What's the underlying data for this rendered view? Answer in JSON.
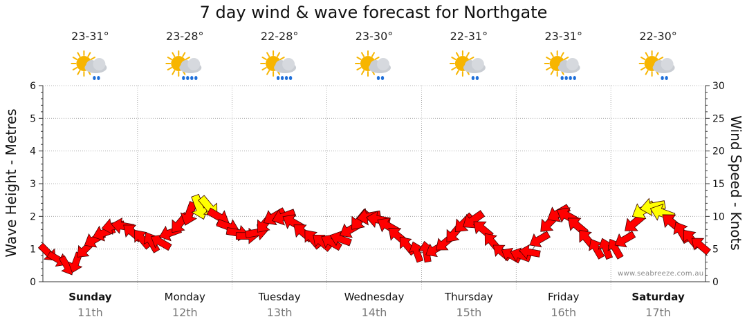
{
  "title": "7 day wind & wave forecast for Northgate",
  "watermark": "www.seabreeze.com.au",
  "days": [
    {
      "name": "Sunday",
      "date": "11th",
      "temp": "23-31°",
      "icon": "sun-cloud-showers-icon",
      "weekend": true
    },
    {
      "name": "Monday",
      "date": "12th",
      "temp": "23-28°",
      "icon": "sun-cloud-rain-icon",
      "weekend": false
    },
    {
      "name": "Tuesday",
      "date": "13th",
      "temp": "22-28°",
      "icon": "sun-cloud-rain-icon",
      "weekend": false
    },
    {
      "name": "Wednesday",
      "date": "14th",
      "temp": "23-30°",
      "icon": "sun-cloud-showers-icon",
      "weekend": false
    },
    {
      "name": "Thursday",
      "date": "15th",
      "temp": "22-31°",
      "icon": "sun-cloud-showers-icon",
      "weekend": false
    },
    {
      "name": "Friday",
      "date": "16th",
      "temp": "23-31°",
      "icon": "sun-cloud-rain-icon",
      "weekend": false
    },
    {
      "name": "Saturday",
      "date": "17th",
      "temp": "22-30°",
      "icon": "sun-cloud-showers-icon",
      "weekend": true
    }
  ],
  "colors": {
    "arrow_strong": "#ff0000",
    "arrow_light": "#ffff00",
    "arrow_outline": "#3a0000",
    "grid": "#9a9a9a",
    "wave_line": "#555555",
    "sun": "#f7b500",
    "cloud": "#c9cdd3",
    "rain": "#1e6fd9"
  },
  "chart_data": {
    "type": "line",
    "title": "7 day wind & wave forecast for Northgate",
    "xlabel": "",
    "ylabel": "Wave Height - Metres",
    "y2label": "Wind Speed - Knots",
    "ylim": [
      0,
      6
    ],
    "y2lim": [
      0,
      30
    ],
    "yticks": [
      "0",
      "1",
      "2",
      "3",
      "4",
      "5",
      "6"
    ],
    "y2ticks": [
      "0",
      "5",
      "10",
      "15",
      "20",
      "25",
      "30"
    ],
    "grid": true,
    "categories": [
      "Sunday 11th",
      "Monday 12th",
      "Tuesday 13th",
      "Wednesday 14th",
      "Thursday 15th",
      "Friday 16th",
      "Saturday 17th"
    ],
    "series": [
      {
        "name": "Wave Height - Metres",
        "x": [
          0.0,
          0.1,
          0.2,
          0.3,
          0.4,
          0.5,
          0.6,
          0.7,
          0.8,
          0.9,
          1.0,
          1.1,
          1.2,
          1.3,
          1.4,
          1.5,
          1.6,
          1.7,
          1.8,
          1.9,
          2.0,
          2.1,
          2.2,
          2.3,
          2.4,
          2.5,
          2.6,
          2.7,
          2.8,
          2.9,
          3.0,
          3.1,
          3.2,
          3.3,
          3.4,
          3.5,
          3.6,
          3.7,
          3.8,
          3.9,
          4.0,
          4.1,
          4.2,
          4.3,
          4.4,
          4.5,
          4.6,
          4.7,
          4.8,
          4.9,
          5.0,
          5.1,
          5.2,
          5.3,
          5.4,
          5.5,
          5.6,
          5.7,
          5.8,
          5.9,
          6.0,
          6.1,
          6.2,
          6.3,
          6.4,
          6.5,
          6.6,
          6.7,
          6.8,
          6.9
        ],
        "values": [
          0.9,
          0.7,
          0.5,
          0.6,
          1.0,
          1.3,
          1.5,
          1.7,
          1.7,
          1.5,
          1.3,
          1.2,
          1.2,
          1.5,
          1.8,
          2.1,
          2.3,
          2.3,
          2.0,
          1.7,
          1.5,
          1.4,
          1.5,
          1.8,
          2.0,
          2.0,
          1.8,
          1.5,
          1.3,
          1.2,
          1.2,
          1.3,
          1.6,
          1.9,
          2.0,
          1.9,
          1.7,
          1.4,
          1.1,
          0.9,
          0.9,
          1.0,
          1.2,
          1.5,
          1.8,
          1.9,
          1.6,
          1.2,
          0.9,
          0.8,
          0.8,
          0.9,
          1.3,
          1.8,
          2.1,
          2.0,
          1.7,
          1.3,
          1.0,
          1.0,
          1.0,
          1.3,
          1.8,
          2.2,
          2.3,
          2.1,
          1.8,
          1.5,
          1.3,
          1.1
        ]
      },
      {
        "name": "Wind Speed - Knots",
        "x": [
          0.0,
          0.1,
          0.2,
          0.3,
          0.4,
          0.5,
          0.6,
          0.7,
          0.8,
          0.9,
          1.0,
          1.1,
          1.2,
          1.3,
          1.4,
          1.5,
          1.6,
          1.7,
          1.8,
          1.9,
          2.0,
          2.1,
          2.2,
          2.3,
          2.4,
          2.5,
          2.6,
          2.7,
          2.8,
          2.9,
          3.0,
          3.1,
          3.2,
          3.3,
          3.4,
          3.5,
          3.6,
          3.7,
          3.8,
          3.9,
          4.0,
          4.1,
          4.2,
          4.3,
          4.4,
          4.5,
          4.6,
          4.7,
          4.8,
          4.9,
          5.0,
          5.1,
          5.2,
          5.3,
          5.4,
          5.5,
          5.6,
          5.7,
          5.8,
          5.9,
          6.0,
          6.1,
          6.2,
          6.3,
          6.4,
          6.5,
          6.6,
          6.7,
          6.8,
          6.9
        ],
        "values": [
          5,
          4,
          3,
          4,
          5,
          7,
          8,
          8,
          8,
          7,
          7,
          6,
          6,
          7,
          9,
          11,
          13,
          12,
          9,
          8,
          7,
          7,
          7,
          8,
          10,
          10,
          9,
          8,
          7,
          6,
          6,
          6,
          8,
          10,
          10,
          10,
          9,
          7,
          5,
          4,
          4,
          5,
          6,
          8,
          9,
          10,
          8,
          6,
          4,
          4,
          4,
          4,
          6,
          8,
          11,
          11,
          9,
          7,
          5,
          5,
          5,
          6,
          9,
          12,
          13,
          12,
          10,
          8,
          7,
          6
        ],
        "direction_deg": [
          315,
          300,
          330,
          20,
          45,
          60,
          70,
          80,
          100,
          130,
          140,
          150,
          120,
          70,
          40,
          20,
          340,
          320,
          300,
          290,
          280,
          270,
          260,
          40,
          60,
          70,
          120,
          130,
          140,
          130,
          120,
          110,
          60,
          40,
          80,
          100,
          120,
          130,
          140,
          160,
          170,
          60,
          50,
          40,
          45,
          55,
          130,
          140,
          130,
          120,
          110,
          100,
          60,
          45,
          60,
          120,
          130,
          140,
          150,
          160,
          150,
          60,
          50,
          60,
          80,
          110,
          130,
          150,
          140,
          130
        ]
      }
    ]
  }
}
